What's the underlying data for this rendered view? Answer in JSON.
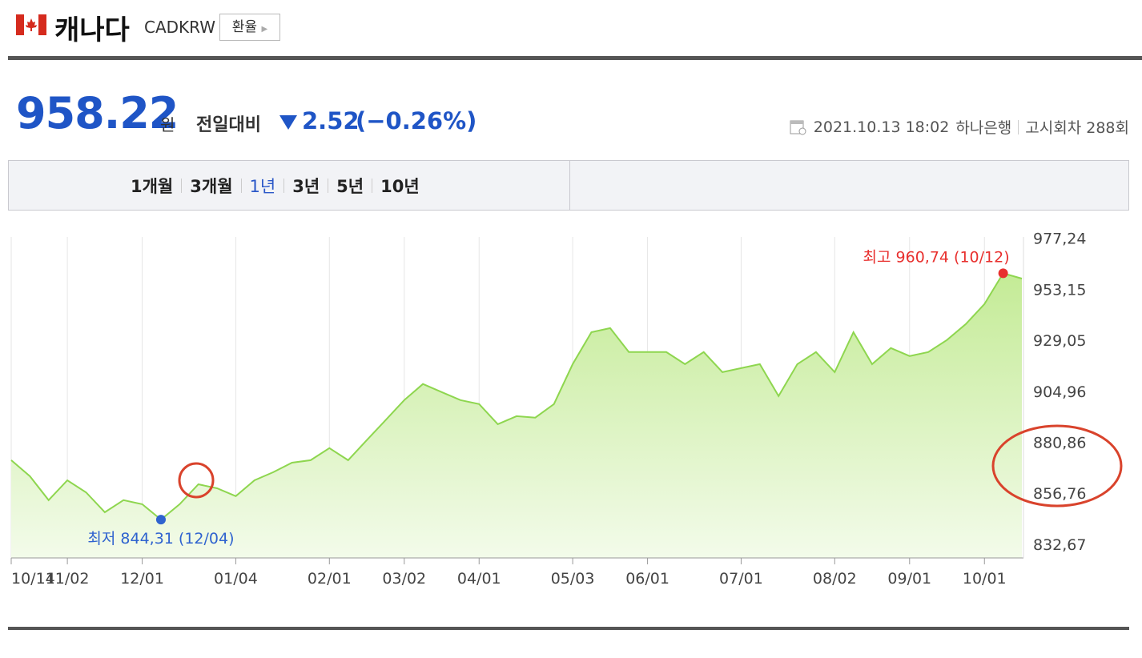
{
  "header": {
    "title": "캐나다",
    "code": "CADKRW",
    "button": "환율"
  },
  "quote": {
    "price": "958.22",
    "unit": "원",
    "compare_label": "전일대비",
    "change": "2.52",
    "change_pct": "(−0.26%)",
    "datetime": "2021.10.13 18:02",
    "bank": "하나은행",
    "round": "고시회차 288회"
  },
  "tabs": {
    "items": [
      "1개월",
      "3개월",
      "1년",
      "3년",
      "5년",
      "10년"
    ],
    "active": "1년"
  },
  "chart_data": {
    "type": "area-line",
    "color": "#8ed64f",
    "categories": [
      "10/14",
      null,
      null,
      "11/02",
      null,
      null,
      null,
      "12/01",
      null,
      null,
      null,
      null,
      "01/04",
      null,
      null,
      null,
      null,
      "02/01",
      null,
      null,
      null,
      "03/02",
      null,
      null,
      null,
      "04/01",
      null,
      null,
      null,
      null,
      "05/03",
      null,
      null,
      null,
      "06/01",
      null,
      null,
      null,
      null,
      "07/01",
      null,
      null,
      null,
      null,
      "08/02",
      null,
      null,
      null,
      "09/01",
      null,
      null,
      null,
      "10/01",
      null,
      null
    ],
    "values": [
      872.4,
      864.8,
      853.5,
      862.9,
      857.2,
      847.8,
      853.5,
      851.6,
      844.31,
      851.6,
      861.0,
      859.1,
      855.4,
      862.9,
      866.7,
      871.2,
      872.4,
      878.1,
      872.4,
      881.9,
      891.3,
      900.8,
      908.4,
      904.6,
      900.8,
      898.9,
      889.4,
      893.2,
      892.5,
      898.9,
      917.8,
      932.9,
      934.8,
      923.5,
      923.5,
      923.5,
      917.8,
      923.5,
      914.0,
      915.9,
      917.8,
      902.7,
      917.8,
      923.5,
      914.0,
      932.9,
      917.8,
      925.4,
      921.6,
      923.5,
      929.2,
      936.7,
      946.2,
      960.74,
      958.22
    ],
    "ylim": [
      826.2,
      977.9
    ],
    "yticks": [
      {
        "value": 977.24,
        "label": "977,24"
      },
      {
        "value": 953.15,
        "label": "953,15"
      },
      {
        "value": 929.05,
        "label": "929,05"
      },
      {
        "value": 904.96,
        "label": "904,96"
      },
      {
        "value": 880.86,
        "label": "880,86"
      },
      {
        "value": 856.76,
        "label": "856,76"
      },
      {
        "value": 832.67,
        "label": "832,67"
      }
    ],
    "grid": true,
    "high_label": "최고 960,74 (10/12)",
    "high_color": "#e8302e",
    "low_label": "최저 844,31 (12/04)",
    "low_color": "#2f63cf"
  }
}
